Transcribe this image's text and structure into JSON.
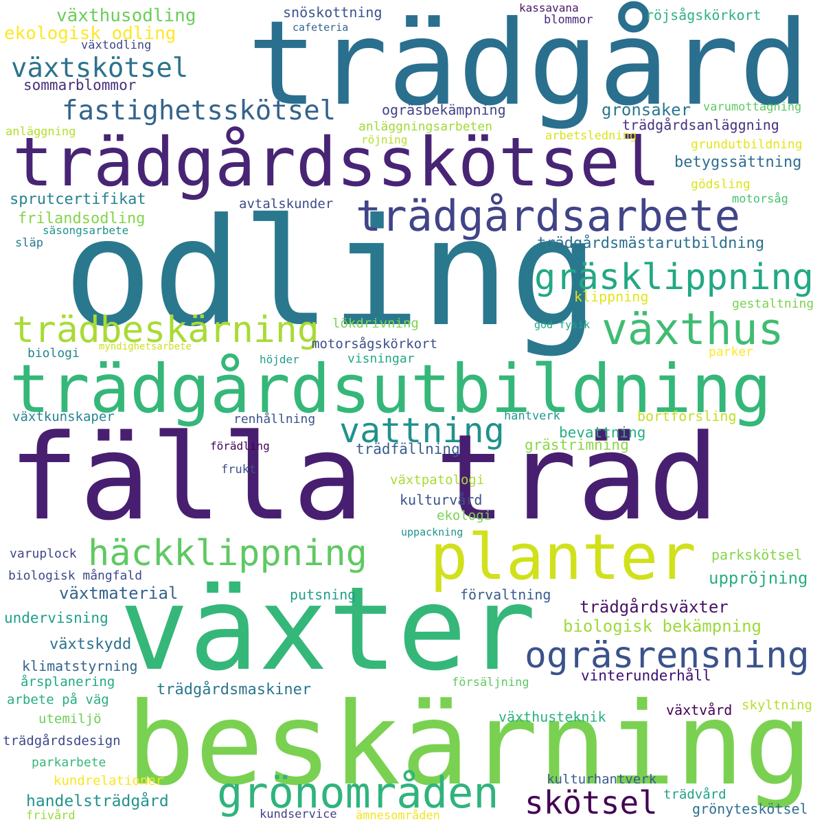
{
  "palette": {
    "p1": "#440154",
    "p2": "#482475",
    "p3": "#414487",
    "p4": "#355f8d",
    "p5": "#2a788e",
    "p6": "#21918c",
    "p7": "#22a884",
    "p8": "#44bf70",
    "p9": "#7ad151",
    "p10": "#bddf26",
    "p11": "#fde725"
  },
  "words": [
    {
      "text": "trädgård",
      "color": "#2a6f8e"
    },
    {
      "text": "trädgårdsskötsel",
      "color": "#482475"
    },
    {
      "text": "odling",
      "color": "#2a788e"
    },
    {
      "text": "trädgårdsarbete",
      "color": "#414487"
    },
    {
      "text": "gräsklippning",
      "color": "#22a884"
    },
    {
      "text": "växthus",
      "color": "#3fbc73"
    },
    {
      "text": "trädbeskärning",
      "color": "#a8db34"
    },
    {
      "text": "trädgårdsutbildning",
      "color": "#35b779"
    },
    {
      "text": "vattning",
      "color": "#21918c"
    },
    {
      "text": "fälla träd",
      "color": "#481f70"
    },
    {
      "text": "häckklippning",
      "color": "#5ec962"
    },
    {
      "text": "planter",
      "color": "#d0e11c"
    },
    {
      "text": "växter",
      "color": "#35b779"
    },
    {
      "text": "ogräsrensning",
      "color": "#3b528b"
    },
    {
      "text": "beskärning",
      "color": "#7ad151"
    },
    {
      "text": "grönområden",
      "color": "#2fb47c"
    },
    {
      "text": "skötsel",
      "color": "#440154"
    },
    {
      "text": "växtskötsel",
      "color": "#2c728e"
    },
    {
      "text": "fastighetsskötsel",
      "color": "#33638d"
    },
    {
      "text": "växthusodling",
      "color": "#6ccd5a"
    },
    {
      "text": "ekologisk odling",
      "color": "#fde725"
    },
    {
      "text": "sommarblommor",
      "color": "#472d7b"
    },
    {
      "text": "växtodling",
      "color": "#3e4989"
    },
    {
      "text": "snöskottning",
      "color": "#3b528b"
    },
    {
      "text": "cafeteria",
      "color": "#33638d"
    },
    {
      "text": "kassavana",
      "color": "#48186a"
    },
    {
      "text": "blommor",
      "color": "#482878"
    },
    {
      "text": "röjsågskörkort",
      "color": "#2db27d"
    },
    {
      "text": "ogräsbekämpning",
      "color": "#414487"
    },
    {
      "text": "grönsaker",
      "color": "#2a788e"
    },
    {
      "text": "varumottagning",
      "color": "#5ec962"
    },
    {
      "text": "anläggningsarbeten",
      "color": "#a0da39"
    },
    {
      "text": "trädgårdsanläggning",
      "color": "#46327e"
    },
    {
      "text": "röjning",
      "color": "#b5de2b"
    },
    {
      "text": "arbetsledning",
      "color": "#d8e219"
    },
    {
      "text": "anläggning",
      "color": "#b5de2b"
    },
    {
      "text": "grundutbildning",
      "color": "#e5e419"
    },
    {
      "text": "betygssättning",
      "color": "#2e6e8e"
    },
    {
      "text": "sprutcertifikat",
      "color": "#26828e"
    },
    {
      "text": "avtalskunder",
      "color": "#3e4a89"
    },
    {
      "text": "gödsling",
      "color": "#dde318"
    },
    {
      "text": "motorsåg",
      "color": "#4ac16d"
    },
    {
      "text": "frilandsodling",
      "color": "#84d44b"
    },
    {
      "text": "säsongsarbete",
      "color": "#21918c"
    },
    {
      "text": "släp",
      "color": "#29798e"
    },
    {
      "text": "trädgårdsmästarutbildning",
      "color": "#2d708e"
    },
    {
      "text": "klippning",
      "color": "#e2e418"
    },
    {
      "text": "gestaltning",
      "color": "#7ad151"
    },
    {
      "text": "lökdrivning",
      "color": "#7fd34e"
    },
    {
      "text": "god fysik",
      "color": "#20a486"
    },
    {
      "text": "motorsågskörkort",
      "color": "#3d4e8a"
    },
    {
      "text": "biologi",
      "color": "#25858e"
    },
    {
      "text": "myndighetsarbete",
      "color": "#cae11f"
    },
    {
      "text": "höjder",
      "color": "#1f9e89"
    },
    {
      "text": "visningar",
      "color": "#22a884"
    },
    {
      "text": "parker",
      "color": "#fde725"
    },
    {
      "text": "växtkunskaper",
      "color": "#25848e"
    },
    {
      "text": "renhållning",
      "color": "#3b528b"
    },
    {
      "text": "hantverk",
      "color": "#1f988b"
    },
    {
      "text": "bortforsling",
      "color": "#c2df23"
    },
    {
      "text": "bevattning",
      "color": "#26ad81"
    },
    {
      "text": "förädling",
      "color": "#440154"
    },
    {
      "text": "trädfällning",
      "color": "#365c8d"
    },
    {
      "text": "grästrimning",
      "color": "#8bd646"
    },
    {
      "text": "frukt",
      "color": "#3b528b"
    },
    {
      "text": "växtpatologi",
      "color": "#a8db34"
    },
    {
      "text": "kulturvård",
      "color": "#3b528b"
    },
    {
      "text": "ekologi",
      "color": "#7ad151"
    },
    {
      "text": "uppackning",
      "color": "#21918c"
    },
    {
      "text": "varuplock",
      "color": "#3f4788"
    },
    {
      "text": "parkskötsel",
      "color": "#86d549"
    },
    {
      "text": "biologisk mångfald",
      "color": "#3e4989"
    },
    {
      "text": "växtmaterial",
      "color": "#33638d"
    },
    {
      "text": "putsning",
      "color": "#1f9e89"
    },
    {
      "text": "förvaltning",
      "color": "#375a8c"
    },
    {
      "text": "uppröjning",
      "color": "#28ae80"
    },
    {
      "text": "trädgårdsväxter",
      "color": "#471365"
    },
    {
      "text": "undervisning",
      "color": "#1f9e89"
    },
    {
      "text": "biologisk bekämpning",
      "color": "#9dd93b"
    },
    {
      "text": "växtskydd",
      "color": "#2c728e"
    },
    {
      "text": "klimatstyrning",
      "color": "#33638d"
    },
    {
      "text": "vinterunderhåll",
      "color": "#3b0f70"
    },
    {
      "text": "årsplanering",
      "color": "#22a884"
    },
    {
      "text": "försäljning",
      "color": "#5ec962"
    },
    {
      "text": "skyltning",
      "color": "#b5de2b"
    },
    {
      "text": "arbete på väg",
      "color": "#27ad81"
    },
    {
      "text": "trädgårdsmaskiner",
      "color": "#2a768e"
    },
    {
      "text": "växtvård",
      "color": "#440154"
    },
    {
      "text": "växthusteknik",
      "color": "#2ab07f"
    },
    {
      "text": "utemiljö",
      "color": "#6ece58"
    },
    {
      "text": "trädgårdsdesign",
      "color": "#3f4889"
    },
    {
      "text": "parkarbete",
      "color": "#35b779"
    },
    {
      "text": "kundrelationer",
      "color": "#f8e621"
    },
    {
      "text": "kulturhantverk",
      "color": "#375b8d"
    },
    {
      "text": "handelsträdgård",
      "color": "#20938c"
    },
    {
      "text": "trädvård",
      "color": "#1fa188"
    },
    {
      "text": "grönyteskötsel",
      "color": "#2d708e"
    },
    {
      "text": "frivård",
      "color": "#9bd93c"
    },
    {
      "text": "kundservice",
      "color": "#424186"
    },
    {
      "text": "ämnesområden",
      "color": "#f1e51d"
    }
  ]
}
